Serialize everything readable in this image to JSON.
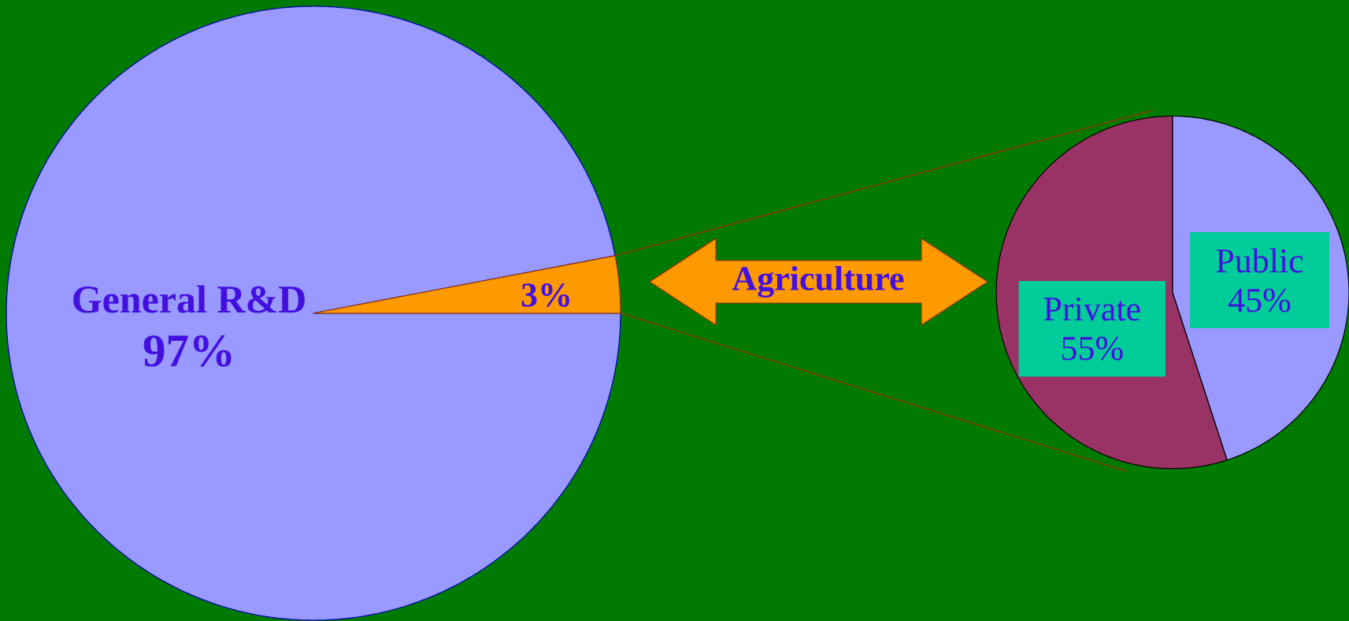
{
  "chart_data": [
    {
      "type": "pie",
      "categories": [
        "General R&D",
        "Agriculture"
      ],
      "values": [
        97,
        3
      ],
      "colors": [
        "#9999ff",
        "#ff9900"
      ],
      "value_labels": [
        "97%",
        "3%"
      ]
    },
    {
      "type": "pie",
      "categories": [
        "Private",
        "Public"
      ],
      "values": [
        55,
        45
      ],
      "colors": [
        "#993366",
        "#9999ff"
      ],
      "value_labels": [
        "55%",
        "45%"
      ]
    }
  ]
}
